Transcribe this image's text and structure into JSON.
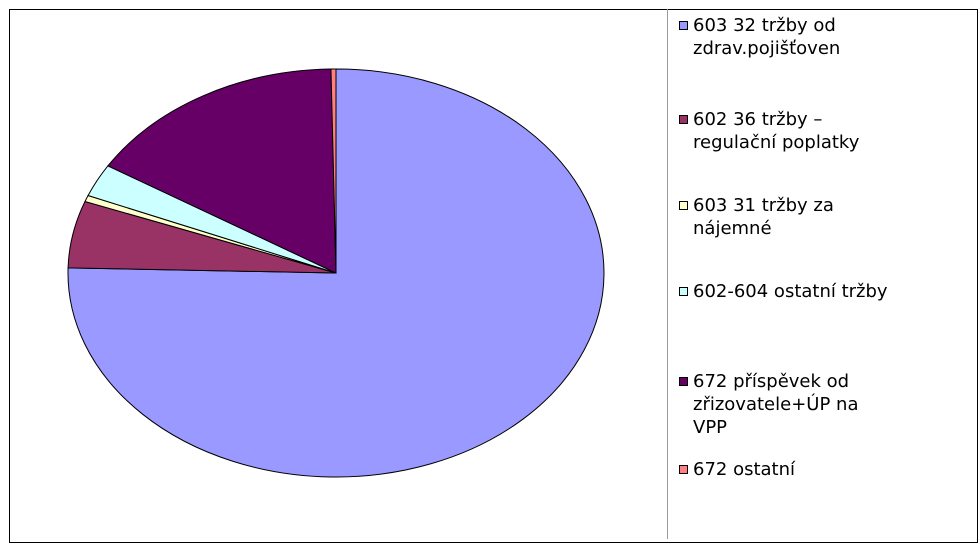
{
  "chart_data": {
    "type": "pie",
    "title": "",
    "legend_position": "right",
    "slices": [
      {
        "label": "603 32 tržby od zdrav.pojišťoven",
        "label_lines": [
          "603 32 tržby od",
          "zdrav.pojišťoven"
        ],
        "value": 75.4,
        "color": "#9999ff"
      },
      {
        "label": "602 36 tržby – regulační poplatky",
        "label_lines": [
          "602 36 tržby –",
          "regulační poplatky"
        ],
        "value": 5.3,
        "color": "#993366"
      },
      {
        "label": "603 31 tržby za nájemné",
        "label_lines": [
          "603 31 tržby za",
          "nájemné"
        ],
        "value": 0.5,
        "color": "#ffffcc"
      },
      {
        "label": "602-604 ostatní tržby",
        "label_lines": [
          "602-604 ostatní tržby"
        ],
        "value": 2.6,
        "color": "#ccffff"
      },
      {
        "label": "672 příspěvek od zřizovatele+ÚP na VPP",
        "label_lines": [
          "672 příspěvek od",
          "zřizovatele+ÚP na",
          "VPP"
        ],
        "value": 15.9,
        "color": "#660066"
      },
      {
        "label": "672 ostatní",
        "label_lines": [
          "672 ostatní"
        ],
        "value": 0.3,
        "color": "#ff8080"
      }
    ]
  }
}
